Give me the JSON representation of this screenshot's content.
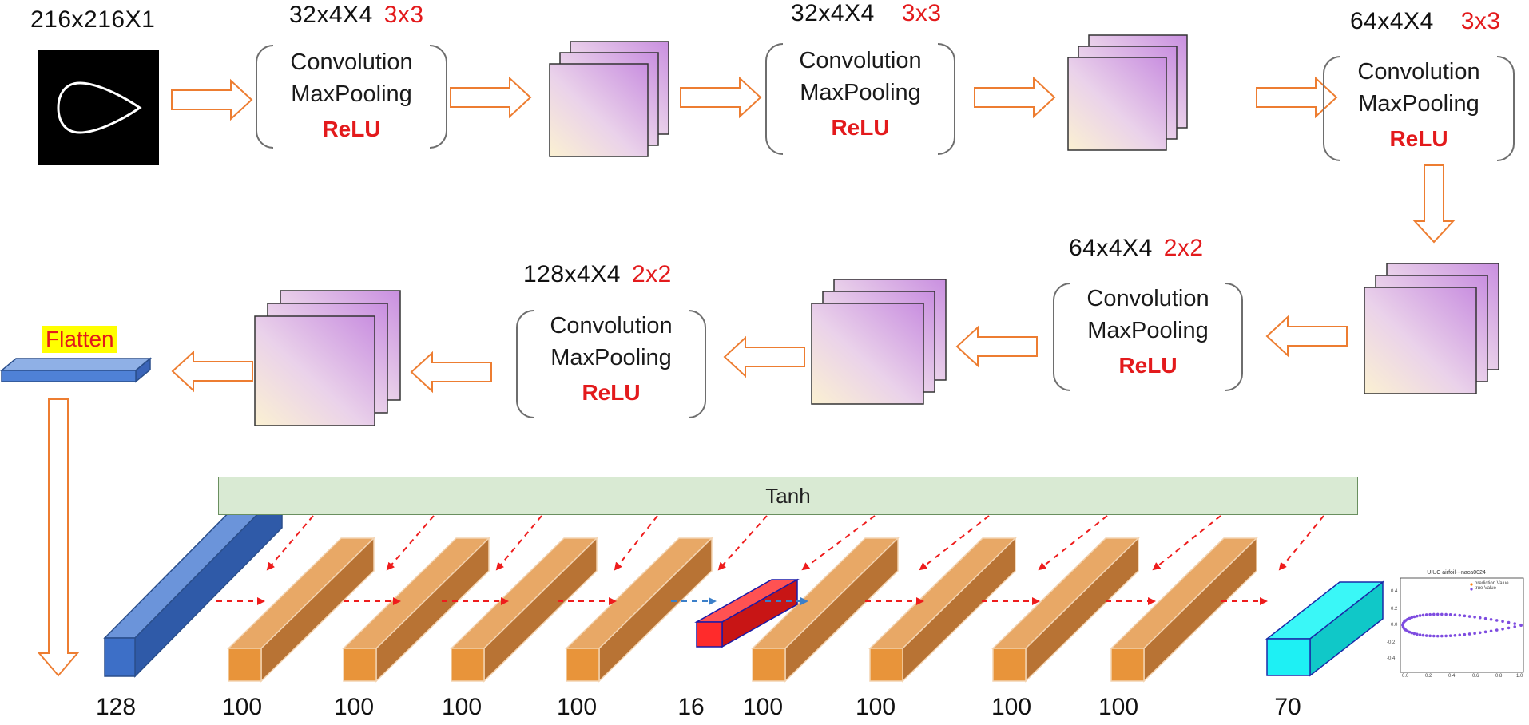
{
  "input": {
    "label": "216x216X1"
  },
  "conv_blocks": [
    {
      "size": "32x4X4",
      "kernel": "3x3",
      "line1": "Convolution",
      "line2": "MaxPooling",
      "line3": "ReLU"
    },
    {
      "size": "32x4X4",
      "kernel": "3x3",
      "line1": "Convolution",
      "line2": "MaxPooling",
      "line3": "ReLU"
    },
    {
      "size": "64x4X4",
      "kernel": "3x3",
      "line1": "Convolution",
      "line2": "MaxPooling",
      "line3": "ReLU"
    },
    {
      "size": "64x4X4",
      "kernel": "2x2",
      "line1": "Convolution",
      "line2": "MaxPooling",
      "line3": "ReLU"
    },
    {
      "size": "128x4X4",
      "kernel": "2x2",
      "line1": "Convolution",
      "line2": "MaxPooling",
      "line3": "ReLU"
    }
  ],
  "flatten": {
    "label": "Flatten"
  },
  "activation": {
    "label": "Tanh"
  },
  "layer_sizes": [
    "128",
    "100",
    "100",
    "100",
    "100",
    "16",
    "100",
    "100",
    "100",
    "100",
    "70"
  ],
  "output_plot": {
    "title": "UIUC airfoil---naca0024",
    "legend": [
      "prediction Value",
      "true Value"
    ],
    "yticks": [
      "0.4",
      "0.2",
      "0.0",
      "-0.2",
      "-0.4"
    ],
    "xticks": [
      "0.0",
      "0.2",
      "0.4",
      "0.6",
      "0.8",
      "1.0"
    ]
  },
  "colors": {
    "arrow": "#ed7d31",
    "kernel_text": "#e31a1c",
    "dense_layer": "#e69a4e",
    "bottleneck": "#ff2b2b",
    "output_layer": "#1ee8ee",
    "input_layer": "#4472c4",
    "dashed_red": "#ee1c1c",
    "dashed_blue": "#3b7fc9",
    "airfoil_points": "#7e4ce0"
  }
}
